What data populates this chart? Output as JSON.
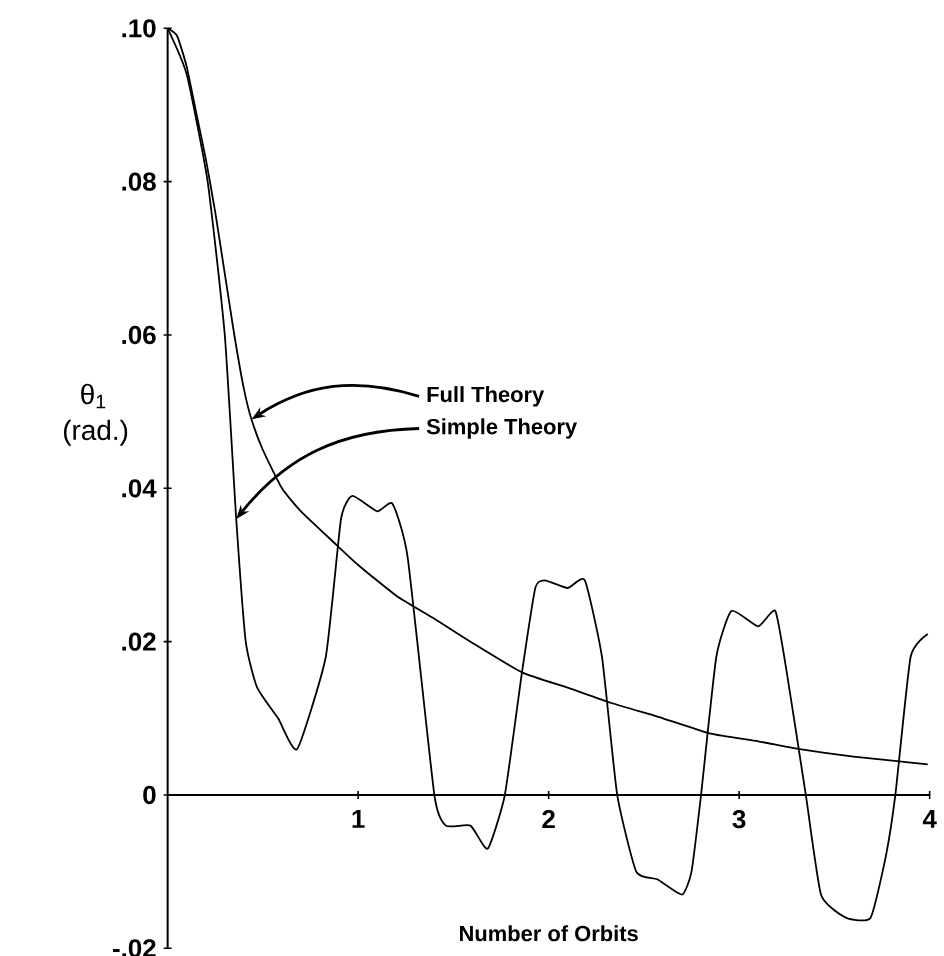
{
  "chart_data": {
    "type": "line",
    "xlabel": "Number of Orbits",
    "ylabel": "θ$_{1}$ (rad.)",
    "xlim": [
      0,
      4
    ],
    "ylim": [
      -0.02,
      0.1
    ],
    "xticks": [
      1,
      2,
      3,
      4
    ],
    "yticks": [
      {
        "value": -0.02,
        "label": "-.02"
      },
      {
        "value": 0,
        "label": "0"
      },
      {
        "value": 0.02,
        "label": ".02"
      },
      {
        "value": 0.04,
        "label": ".04"
      },
      {
        "value": 0.06,
        "label": ".06"
      },
      {
        "value": 0.08,
        "label": ".08"
      },
      {
        "value": 0.1,
        "label": ".10"
      }
    ],
    "grid": false,
    "marker": "none",
    "line_style": "solid",
    "annotations": [
      {
        "text": "Full Theory",
        "x": 0.44,
        "y": 0.049
      },
      {
        "text": "Simple Theory",
        "x": 0.36,
        "y": 0.036
      }
    ],
    "series": [
      {
        "color": "#000000",
        "x": [
          0,
          0.05,
          0.1,
          0.15,
          0.2,
          0.25,
          0.3,
          0.35,
          0.4,
          0.44,
          0.5,
          0.6,
          0.7,
          0.87,
          1.0,
          1.2,
          1.4,
          1.59,
          1.86,
          2.1,
          2.33,
          2.6,
          2.85,
          3.1,
          3.31,
          3.6,
          3.99
        ],
        "values": [
          0.1,
          0.099,
          0.095,
          0.089,
          0.083,
          0.076,
          0.068,
          0.06,
          0.053,
          0.049,
          0.045,
          0.04,
          0.037,
          0.033,
          0.03,
          0.026,
          0.023,
          0.02,
          0.016,
          0.014,
          0.012,
          0.01,
          0.008,
          0.007,
          0.006,
          0.005,
          0.004
        ]
      },
      {
        "color": "#000000",
        "x": [
          0,
          0.1,
          0.21,
          0.3,
          0.36,
          0.41,
          0.47,
          0.58,
          0.68,
          0.83,
          0.91,
          0.97,
          1.1,
          1.18,
          1.26,
          1.4,
          1.46,
          1.59,
          1.68,
          1.77,
          1.86,
          1.93,
          1.98,
          2.1,
          2.19,
          2.28,
          2.36,
          2.46,
          2.57,
          2.7,
          2.75,
          2.8,
          2.88,
          2.96,
          3.1,
          3.19,
          3.25,
          3.35,
          3.43,
          3.56,
          3.69,
          3.77,
          3.82,
          3.9,
          3.99
        ],
        "values": [
          0.1,
          0.094,
          0.08,
          0.06,
          0.036,
          0.02,
          0.014,
          0.01,
          0.006,
          0.018,
          0.036,
          0.039,
          0.037,
          0.038,
          0.031,
          0,
          -0.004,
          -0.004,
          -0.007,
          0,
          0.016,
          0.027,
          0.028,
          0.027,
          0.028,
          0.018,
          0,
          -0.01,
          -0.011,
          -0.013,
          -0.01,
          0,
          0.018,
          0.024,
          0.022,
          0.024,
          0.016,
          0,
          -0.013,
          -0.016,
          -0.016,
          -0.008,
          0,
          0.018,
          0.021
        ]
      }
    ]
  }
}
